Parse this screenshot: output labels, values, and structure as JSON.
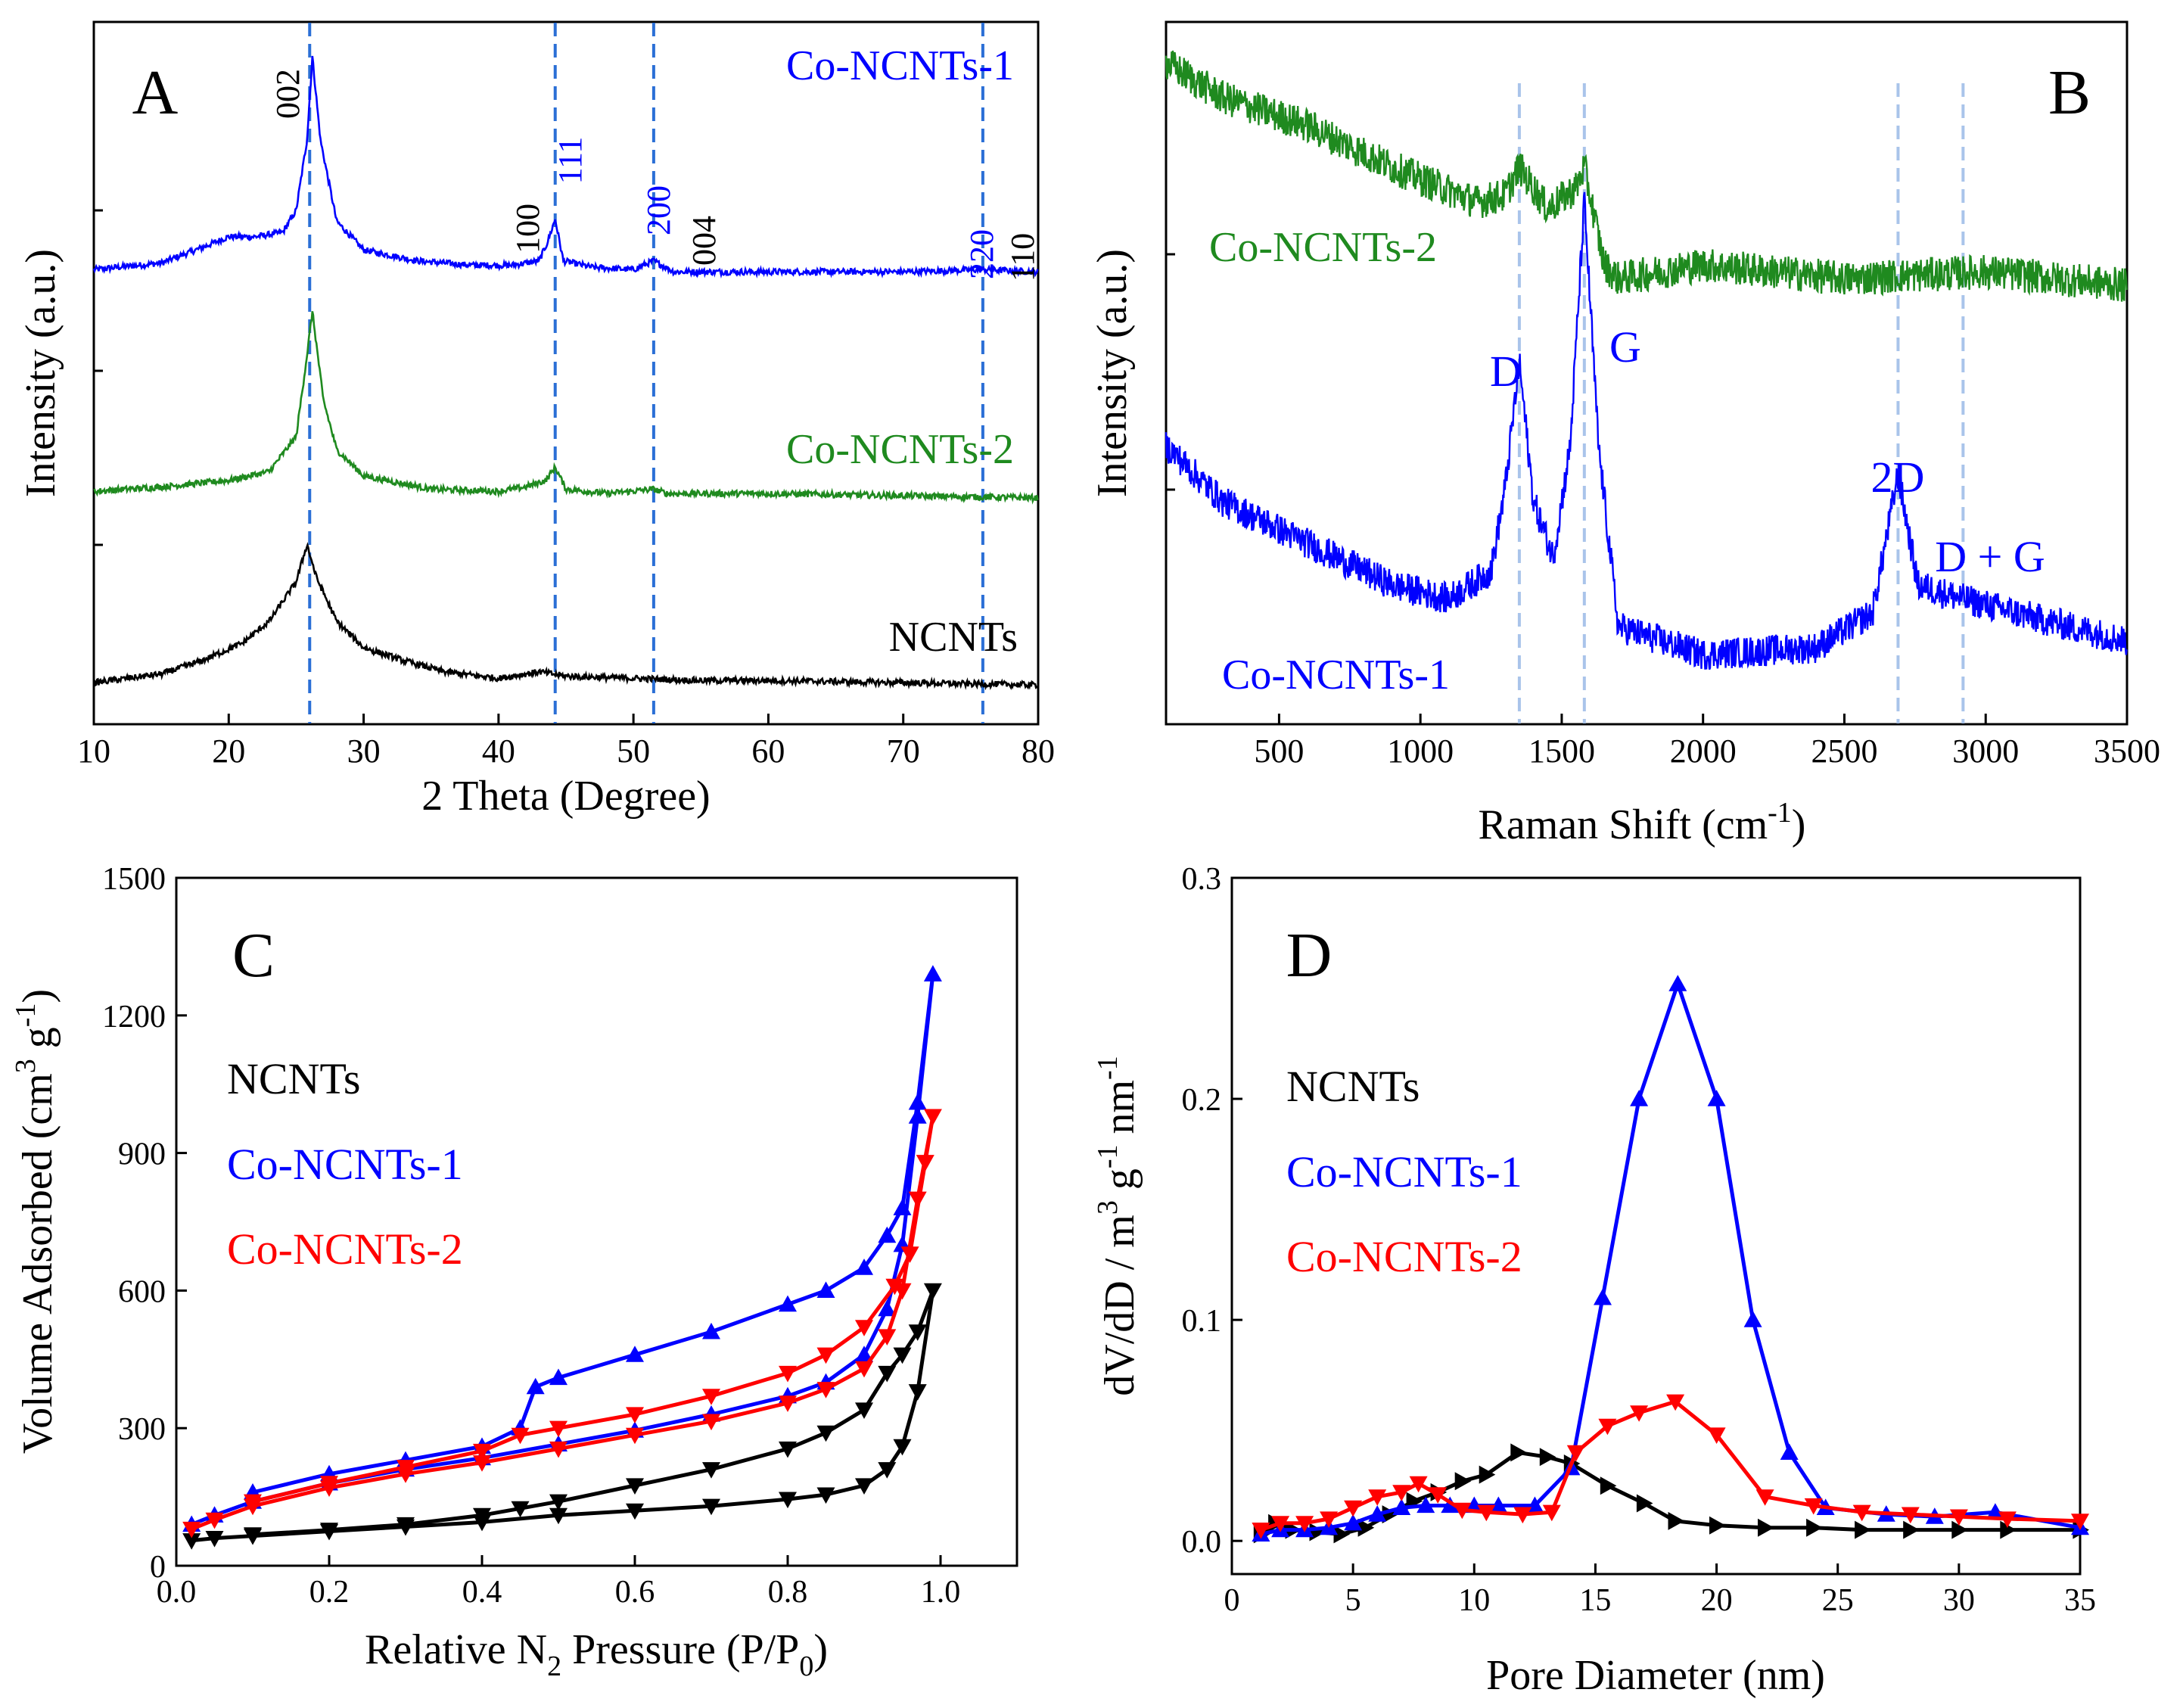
{
  "chart_data": [
    {
      "panel": "A",
      "type": "line",
      "xlabel": "2 Theta (Degree)",
      "ylabel": "Intensity (a.u.)",
      "xlim": [
        10,
        80
      ],
      "xticks": [
        10,
        20,
        30,
        40,
        50,
        60,
        70,
        80
      ],
      "reference_lines": [
        26.0,
        44.2,
        51.5,
        75.9
      ],
      "series": [
        {
          "name": "Co-NCNTs-1",
          "color": "#0000ff",
          "x": [
            10,
            15,
            18,
            20,
            22,
            24,
            25,
            25.8,
            26.2,
            26.8,
            28,
            30,
            34,
            38,
            41,
            43,
            43.6,
            44.2,
            44.8,
            47,
            50,
            51.5,
            53,
            60,
            70,
            75.9,
            80
          ],
          "y": [
            0.03,
            0.06,
            0.13,
            0.18,
            0.18,
            0.2,
            0.3,
            0.62,
            1.0,
            0.62,
            0.25,
            0.12,
            0.07,
            0.05,
            0.05,
            0.07,
            0.15,
            0.26,
            0.07,
            0.04,
            0.03,
            0.07,
            0.02,
            0.02,
            0.02,
            0.03,
            0.02
          ]
        },
        {
          "name": "Co-NCNTs-2",
          "color": "#1f8a1f",
          "x": [
            10,
            15,
            20,
            23,
            25,
            25.8,
            26.2,
            27,
            28,
            30,
            35,
            40,
            42,
            43.5,
            44.2,
            45,
            48,
            51.5,
            52.5,
            60,
            70,
            80
          ],
          "y": [
            0.03,
            0.05,
            0.08,
            0.12,
            0.28,
            0.65,
            0.85,
            0.45,
            0.22,
            0.1,
            0.04,
            0.03,
            0.05,
            0.08,
            0.14,
            0.04,
            0.02,
            0.04,
            0.02,
            0.02,
            0.01,
            0.0
          ]
        },
        {
          "name": "NCNTs",
          "color": "#000000",
          "x": [
            10,
            15,
            18,
            21,
            23,
            25,
            25.8,
            26.5,
            28,
            30,
            33,
            36,
            40,
            42,
            43,
            45,
            50,
            55,
            60,
            70,
            80
          ],
          "y": [
            0.02,
            0.06,
            0.12,
            0.2,
            0.3,
            0.48,
            0.65,
            0.5,
            0.3,
            0.18,
            0.12,
            0.07,
            0.04,
            0.06,
            0.07,
            0.05,
            0.04,
            0.03,
            0.03,
            0.02,
            0.01
          ]
        }
      ],
      "series_labels": [
        "Co-NCNTs-1",
        "Co-NCNTs-2",
        "NCNTs"
      ],
      "peak_labels": [
        {
          "text": "002",
          "color": "#000000"
        },
        {
          "text": "100",
          "color": "#000000"
        },
        {
          "text": "111",
          "color": "#0000ff"
        },
        {
          "text": "200",
          "color": "#0000ff"
        },
        {
          "text": "004",
          "color": "#000000"
        },
        {
          "text": "220",
          "color": "#0000ff"
        },
        {
          "text": "110",
          "color": "#000000"
        }
      ]
    },
    {
      "panel": "B",
      "type": "line",
      "xlabel_main": "Raman Shift (cm",
      "xlabel_sup": "-1",
      "xlabel_end": ")",
      "ylabel": "Intensity (a.u.)",
      "xlim": [
        100,
        3500
      ],
      "xticks": [
        500,
        1000,
        1500,
        2000,
        2500,
        3000,
        3500
      ],
      "reference_lines": [
        1350,
        1580,
        2690,
        2920
      ],
      "series": [
        {
          "name": "Co-NCNTs-2",
          "color": "#1f8a1f",
          "x": [
            100,
            300,
            600,
            900,
            1200,
            1300,
            1350,
            1450,
            1550,
            1580,
            1650,
            1700,
            2000,
            2500,
            3000,
            3500
          ],
          "y": [
            0.95,
            0.9,
            0.86,
            0.8,
            0.75,
            0.76,
            0.8,
            0.74,
            0.77,
            0.8,
            0.66,
            0.64,
            0.66,
            0.64,
            0.65,
            0.63
          ]
        },
        {
          "name": "Co-NCNTs-1",
          "color": "#0000ff",
          "x": [
            100,
            300,
            600,
            900,
            1100,
            1250,
            1300,
            1350,
            1400,
            1470,
            1530,
            1580,
            1630,
            1700,
            2000,
            2400,
            2600,
            2690,
            2760,
            2920,
            3200,
            3500
          ],
          "y": [
            0.4,
            0.32,
            0.26,
            0.2,
            0.18,
            0.22,
            0.34,
            0.52,
            0.32,
            0.24,
            0.4,
            0.75,
            0.4,
            0.14,
            0.1,
            0.11,
            0.16,
            0.36,
            0.2,
            0.18,
            0.15,
            0.12
          ]
        }
      ],
      "series_labels": [
        "Co-NCNTs-2",
        "Co-NCNTs-1"
      ],
      "peak_labels": [
        {
          "text": "D",
          "color": "#0000ff"
        },
        {
          "text": "G",
          "color": "#0000ff"
        },
        {
          "text": "2D",
          "color": "#0000ff"
        },
        {
          "text": "D + G",
          "color": "#0000ff"
        }
      ]
    },
    {
      "panel": "C",
      "type": "line",
      "xlabel_parts": [
        "Relative N",
        "2",
        " Pressure (P/P",
        "0",
        ")"
      ],
      "ylabel_parts": [
        "Volume Adsorbed (cm",
        "3",
        " g",
        "-1",
        ")"
      ],
      "xlim": [
        0.0,
        1.1
      ],
      "ylim": [
        0,
        1500
      ],
      "xticks": [
        0.0,
        0.2,
        0.4,
        0.6,
        0.8,
        1.0
      ],
      "yticks": [
        0,
        300,
        600,
        900,
        1200,
        1500
      ],
      "legend": [
        "NCNTs",
        "Co-NCNTs-1",
        "Co-NCNTs-2"
      ],
      "series": [
        {
          "name": "NCNTs",
          "color": "#000000",
          "marker": "triangle-down",
          "x": [
            0.02,
            0.05,
            0.1,
            0.2,
            0.3,
            0.4,
            0.5,
            0.6,
            0.7,
            0.8,
            0.85,
            0.9,
            0.93,
            0.95,
            0.97,
            0.99,
            0.97,
            0.95,
            0.93,
            0.9,
            0.85,
            0.8,
            0.7,
            0.6,
            0.5,
            0.45,
            0.4,
            0.3,
            0.2,
            0.1
          ],
          "y": [
            55,
            60,
            65,
            75,
            85,
            95,
            110,
            120,
            130,
            145,
            155,
            175,
            210,
            260,
            380,
            600,
            510,
            460,
            420,
            340,
            290,
            255,
            210,
            175,
            140,
            125,
            110,
            90,
            78,
            68
          ]
        },
        {
          "name": "Co-NCNTs-1",
          "color": "#0000ff",
          "marker": "triangle-up",
          "x": [
            0.02,
            0.05,
            0.1,
            0.2,
            0.3,
            0.4,
            0.5,
            0.6,
            0.7,
            0.8,
            0.85,
            0.9,
            0.93,
            0.95,
            0.97,
            0.99,
            0.97,
            0.95,
            0.93,
            0.9,
            0.85,
            0.8,
            0.7,
            0.6,
            0.5,
            0.47,
            0.45,
            0.4,
            0.3,
            0.2,
            0.1
          ],
          "y": [
            90,
            110,
            140,
            180,
            210,
            235,
            265,
            295,
            330,
            370,
            400,
            460,
            560,
            700,
            980,
            1290,
            1010,
            780,
            720,
            650,
            600,
            570,
            510,
            460,
            410,
            390,
            300,
            260,
            230,
            200,
            160
          ]
        },
        {
          "name": "Co-NCNTs-2",
          "color": "#ff0000",
          "marker": "triangle-down",
          "x": [
            0.02,
            0.05,
            0.1,
            0.2,
            0.3,
            0.4,
            0.5,
            0.6,
            0.7,
            0.8,
            0.85,
            0.9,
            0.93,
            0.95,
            0.97,
            0.99,
            0.98,
            0.96,
            0.94,
            0.9,
            0.85,
            0.8,
            0.7,
            0.6,
            0.5,
            0.45,
            0.4,
            0.3,
            0.2,
            0.1
          ],
          "y": [
            80,
            100,
            130,
            170,
            200,
            225,
            255,
            285,
            315,
            355,
            385,
            430,
            500,
            600,
            800,
            980,
            880,
            680,
            610,
            520,
            460,
            420,
            370,
            330,
            300,
            285,
            250,
            215,
            180,
            140
          ]
        }
      ]
    },
    {
      "panel": "D",
      "type": "line",
      "xlabel": "Pore Diameter (nm)",
      "ylabel_parts": [
        "dV/dD / m",
        "3",
        " g",
        "-1",
        " nm",
        "-1"
      ],
      "xlim": [
        0,
        35
      ],
      "ylim": [
        -0.015,
        0.3
      ],
      "xticks": [
        0,
        5,
        10,
        15,
        20,
        25,
        30,
        35
      ],
      "yticks": [
        0.0,
        0.1,
        0.2,
        0.3
      ],
      "yticklabels": [
        "0.0",
        "0.1",
        "0.2",
        "0.3"
      ],
      "legend": [
        "NCNTs",
        "Co-NCNTs-1",
        "Co-NCNTs-2"
      ],
      "series": [
        {
          "name": "NCNTs",
          "color": "#000000",
          "marker": "triangle-right",
          "x": [
            1.2,
            1.8,
            2.5,
            3.5,
            4.5,
            5.5,
            6.5,
            7.5,
            8.5,
            9.5,
            10.5,
            11.8,
            13,
            14,
            15.5,
            17,
            18.3,
            20,
            22,
            24,
            26,
            28,
            30,
            32,
            35
          ],
          "y": [
            0.003,
            0.008,
            0.005,
            0.004,
            0.003,
            0.006,
            0.012,
            0.018,
            0.022,
            0.027,
            0.03,
            0.04,
            0.038,
            0.035,
            0.025,
            0.017,
            0.009,
            0.007,
            0.006,
            0.006,
            0.005,
            0.005,
            0.005,
            0.005,
            0.005
          ]
        },
        {
          "name": "Co-NCNTs-1",
          "color": "#0000ff",
          "marker": "triangle-up",
          "x": [
            1.2,
            2,
            3,
            4,
            5,
            6,
            7,
            8,
            9,
            10,
            11,
            12.5,
            14,
            15.3,
            16.8,
            18.4,
            20,
            21.5,
            23,
            24.5,
            27,
            29,
            31.5,
            35
          ],
          "y": [
            0.003,
            0.005,
            0.005,
            0.006,
            0.008,
            0.012,
            0.015,
            0.016,
            0.016,
            0.016,
            0.016,
            0.016,
            0.033,
            0.11,
            0.2,
            0.252,
            0.2,
            0.1,
            0.04,
            0.015,
            0.012,
            0.011,
            0.013,
            0.006
          ]
        },
        {
          "name": "Co-NCNTs-2",
          "color": "#ff0000",
          "marker": "triangle-down",
          "x": [
            1.2,
            2,
            3,
            4,
            5,
            6,
            7,
            7.7,
            8.5,
            9.5,
            10.5,
            12,
            13.2,
            14.2,
            15.5,
            16.8,
            18.3,
            20,
            22,
            24,
            26,
            28,
            30,
            32,
            35
          ],
          "y": [
            0.005,
            0.008,
            0.008,
            0.01,
            0.015,
            0.02,
            0.022,
            0.026,
            0.021,
            0.014,
            0.013,
            0.012,
            0.013,
            0.04,
            0.052,
            0.058,
            0.063,
            0.048,
            0.02,
            0.016,
            0.013,
            0.012,
            0.011,
            0.01,
            0.009
          ]
        }
      ]
    }
  ],
  "panel_letters": [
    "A",
    "B",
    "C",
    "D"
  ]
}
